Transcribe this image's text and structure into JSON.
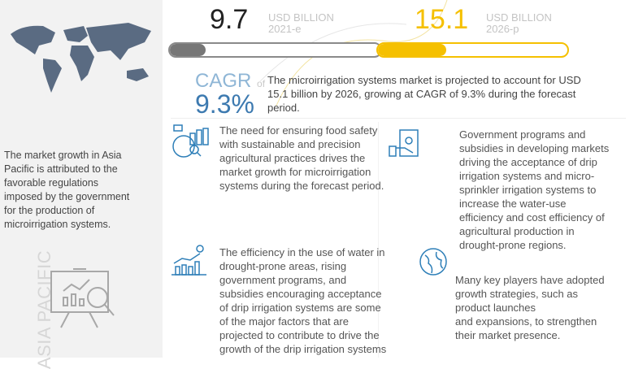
{
  "left_panel": {
    "region_label": "ASIA PACIFIC",
    "text_lines": [
      "The market growth in Asia",
      "Pacific is attributed to the",
      "favorable regulations",
      "imposed by the government",
      "for the production of",
      "microirrigation systems."
    ],
    "icons": [
      "world-map-icon",
      "presentation-analytics-icon"
    ]
  },
  "market_2021": {
    "value": "9.7",
    "unit": "USD BILLION",
    "year": "2021-e",
    "bar_fill_percent": 17,
    "color": "#777777"
  },
  "market_2026": {
    "value": "15.1",
    "unit": "USD BILLION",
    "year": "2026-p",
    "bar_fill_percent": 36,
    "color": "#f5c000"
  },
  "cagr": {
    "label": "CAGR",
    "of": "of",
    "value": "9.3%",
    "color": "#3d7ab0"
  },
  "summary_lines": [
    "The microirrigation systems market is projected to account for USD",
    "15.1 billion by 2026, growing at CAGR of 9.3% during the forecast",
    "period."
  ],
  "drivers": [
    {
      "icon": "food-safety-analytics-icon",
      "lines": [
        "The need for ensuring food safety",
        "with sustainable and precision",
        "agricultural practices drives the",
        "market growth for microirrigation",
        "systems during the forecast period."
      ]
    },
    {
      "icon": "money-hand-icon",
      "lines": [
        "Government programs and",
        "subsidies in developing markets",
        "driving the acceptance of drip",
        "irrigation systems and micro-",
        "sprinkler irrigation systems to",
        "increase the water-use",
        "efficiency and cost efficiency of",
        "agricultural production in",
        "drought-prone regions."
      ]
    },
    {
      "icon": "growth-chart-icon",
      "lines": [
        "The efficiency in the use of water in",
        "drought-prone areas, rising",
        "government programs, and",
        "subsidies encouraging acceptance",
        "of drip irrigation systems are some",
        "of the major factors that are",
        "projected to contribute to drive the",
        "growth of the drip irrigation systems"
      ]
    },
    {
      "icon": "globe-icon",
      "lines": [
        "Many key players have adopted",
        "growth strategies, such as",
        "product launches",
        "and expansions, to strengthen",
        "their market presence."
      ]
    }
  ]
}
